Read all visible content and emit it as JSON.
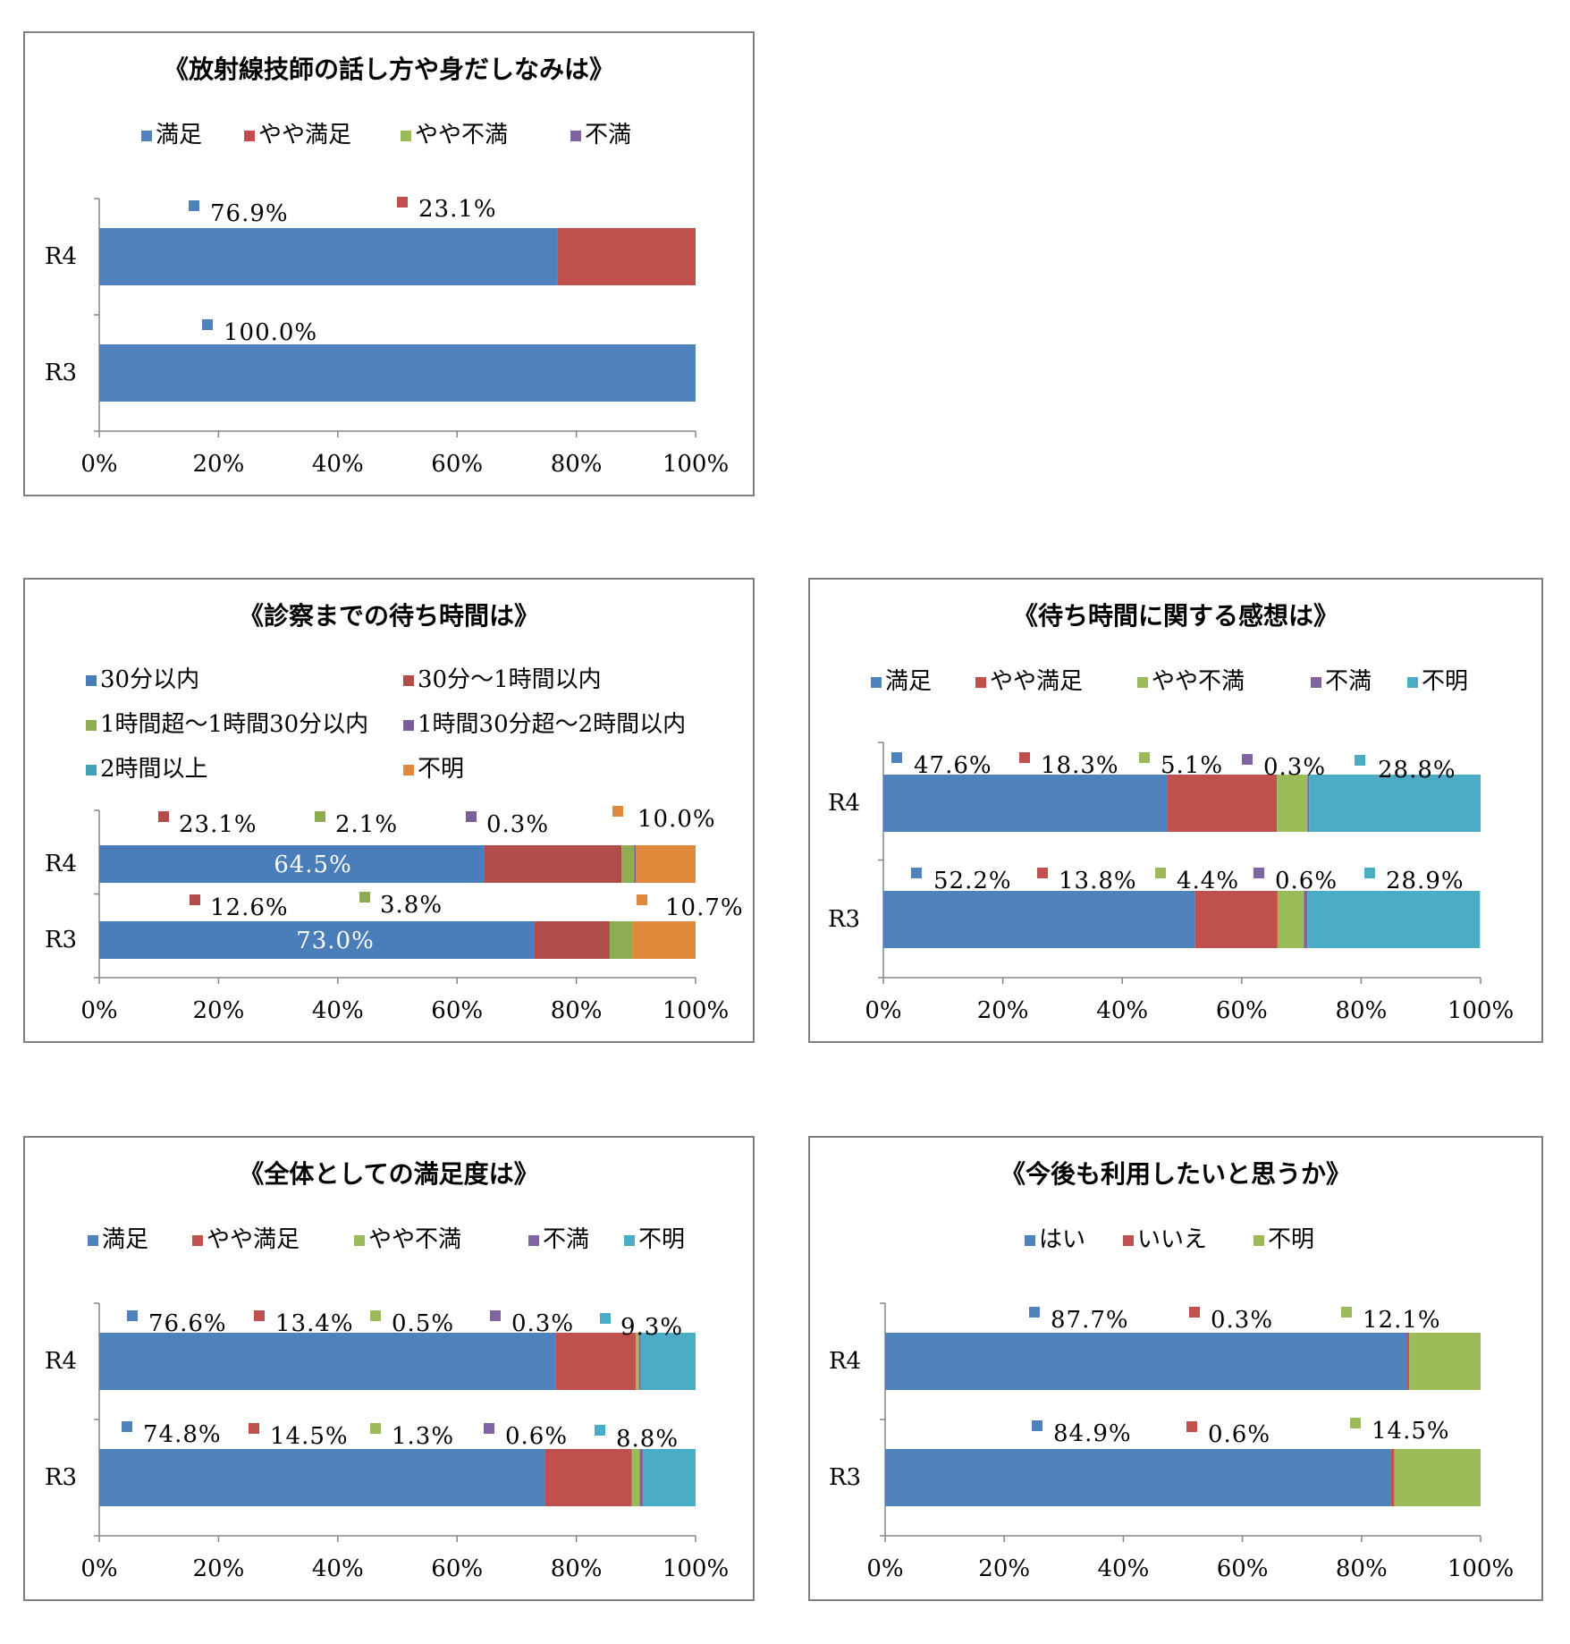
{
  "chart_data": [
    {
      "type": "bar",
      "title": "《放射線技師の話し方や身だしなみは》",
      "categories": [
        "R4",
        "R3"
      ],
      "series": [
        {
          "name": "満足",
          "color": "#4F81BD",
          "values": [
            76.9,
            100.0
          ]
        },
        {
          "name": "やや満足",
          "color": "#C0504D",
          "values": [
            23.1,
            0.0
          ]
        },
        {
          "name": "やや不満",
          "color": "#9BBB59",
          "values": [
            0.0,
            0.0
          ]
        },
        {
          "name": "不満",
          "color": "#8064A2",
          "values": [
            0.0,
            0.0
          ]
        }
      ],
      "data_labels": [
        [
          "76.9%",
          "23.1%"
        ],
        [
          "100.0%"
        ]
      ],
      "x_ticks": [
        "0%",
        "20%",
        "40%",
        "60%",
        "80%",
        "100%"
      ],
      "xlim": [
        0,
        100
      ],
      "stacked": true,
      "legend_position": "top"
    },
    {
      "type": "bar",
      "title": "《診察までの待ち時間は》",
      "categories": [
        "R4",
        "R3"
      ],
      "series": [
        {
          "name": "30分以内",
          "color": "#4A7EBB",
          "values": [
            64.5,
            73.0
          ]
        },
        {
          "name": "30分～1時間以内",
          "color": "#B14C49",
          "values": [
            23.1,
            12.6
          ]
        },
        {
          "name": "1時間超～1時間30分以内",
          "color": "#8EAD53",
          "values": [
            2.1,
            3.8
          ]
        },
        {
          "name": "1時間30分超～2時間以内",
          "color": "#7A5E9A",
          "values": [
            0.3,
            0.0
          ]
        },
        {
          "name": "2時間以上",
          "color": "#40A0B8",
          "values": [
            0.0,
            0.0
          ]
        },
        {
          "name": "不明",
          "color": "#E0893A",
          "values": [
            10.0,
            10.7
          ]
        }
      ],
      "data_labels": [
        [
          "64.5%",
          "23.1%",
          "2.1%",
          "0.3%",
          "10.0%"
        ],
        [
          "73.0%",
          "12.6%",
          "3.8%",
          "10.7%"
        ]
      ],
      "x_ticks": [
        "0%",
        "20%",
        "40%",
        "60%",
        "80%",
        "100%"
      ],
      "xlim": [
        0,
        100
      ],
      "stacked": true,
      "legend_position": "top"
    },
    {
      "type": "bar",
      "title": "《待ち時間に関する感想は》",
      "categories": [
        "R4",
        "R3"
      ],
      "series": [
        {
          "name": "満足",
          "color": "#4F81BD",
          "values": [
            47.6,
            52.2
          ]
        },
        {
          "name": "やや満足",
          "color": "#C0504D",
          "values": [
            18.3,
            13.8
          ]
        },
        {
          "name": "やや不満",
          "color": "#9BBB59",
          "values": [
            5.1,
            4.4
          ]
        },
        {
          "name": "不満",
          "color": "#8064A2",
          "values": [
            0.3,
            0.6
          ]
        },
        {
          "name": "不明",
          "color": "#4BACC6",
          "values": [
            28.8,
            28.9
          ]
        }
      ],
      "data_labels": [
        [
          "47.6%",
          "18.3%",
          "5.1%",
          "0.3%",
          "28.8%"
        ],
        [
          "52.2%",
          "13.8%",
          "4.4%",
          "0.6%",
          "28.9%"
        ]
      ],
      "x_ticks": [
        "0%",
        "20%",
        "40%",
        "60%",
        "80%",
        "100%"
      ],
      "xlim": [
        0,
        100
      ],
      "stacked": true,
      "legend_position": "top"
    },
    {
      "type": "bar",
      "title": "《全体としての満足度は》",
      "categories": [
        "R4",
        "R3"
      ],
      "series": [
        {
          "name": "満足",
          "color": "#4F81BD",
          "values": [
            76.6,
            74.8
          ]
        },
        {
          "name": "やや満足",
          "color": "#C0504D",
          "values": [
            13.4,
            14.5
          ]
        },
        {
          "name": "やや不満",
          "color": "#9BBB59",
          "values": [
            0.5,
            1.3
          ]
        },
        {
          "name": "不満",
          "color": "#8064A2",
          "values": [
            0.3,
            0.6
          ]
        },
        {
          "name": "不明",
          "color": "#4BACC6",
          "values": [
            9.3,
            8.8
          ]
        }
      ],
      "data_labels": [
        [
          "76.6%",
          "13.4%",
          "0.5%",
          "0.3%",
          "9.3%"
        ],
        [
          "74.8%",
          "14.5%",
          "1.3%",
          "0.6%",
          "8.8%"
        ]
      ],
      "x_ticks": [
        "0%",
        "20%",
        "40%",
        "60%",
        "80%",
        "100%"
      ],
      "xlim": [
        0,
        100
      ],
      "stacked": true,
      "legend_position": "top"
    },
    {
      "type": "bar",
      "title": "《今後も利用したいと思うか》",
      "categories": [
        "R4",
        "R3"
      ],
      "series": [
        {
          "name": "はい",
          "color": "#4F81BD",
          "values": [
            87.7,
            84.9
          ]
        },
        {
          "name": "いいえ",
          "color": "#C0504D",
          "values": [
            0.3,
            0.6
          ]
        },
        {
          "name": "不明",
          "color": "#9BBB59",
          "values": [
            12.1,
            14.5
          ]
        }
      ],
      "data_labels": [
        [
          "87.7%",
          "0.3%",
          "12.1%"
        ],
        [
          "84.9%",
          "0.6%",
          "14.5%"
        ]
      ],
      "x_ticks": [
        "0%",
        "20%",
        "40%",
        "60%",
        "80%",
        "100%"
      ],
      "xlim": [
        0,
        100
      ],
      "stacked": true,
      "legend_position": "top"
    }
  ]
}
